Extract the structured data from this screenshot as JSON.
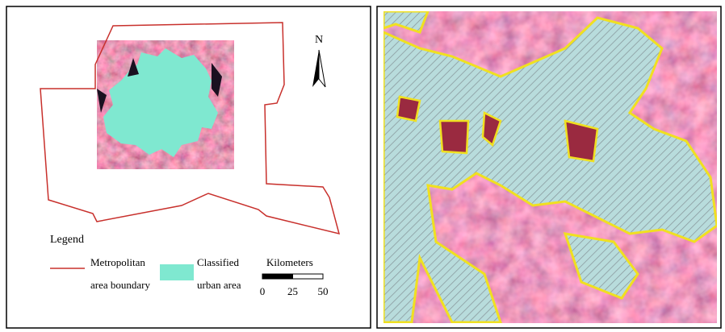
{
  "north_label": "N",
  "legend": {
    "title": "Legend",
    "items": [
      {
        "lines": [
          "Metropolitan",
          "area boundary"
        ]
      },
      {
        "lines": [
          "Classified",
          "urban area"
        ]
      }
    ]
  },
  "scale_bar": {
    "title": "Kilometers",
    "ticks": [
      0,
      25,
      50
    ]
  }
}
